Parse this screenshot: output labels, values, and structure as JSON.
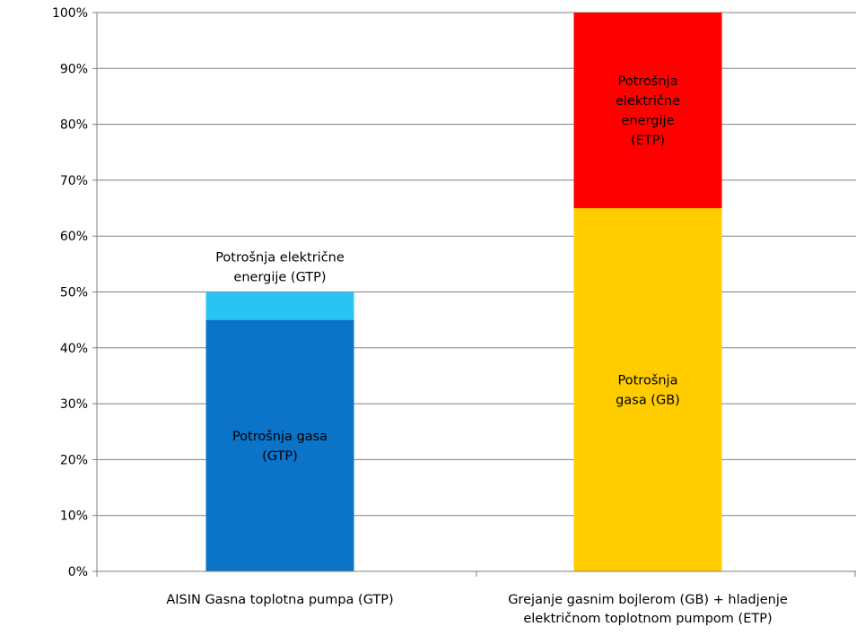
{
  "chart_data": {
    "type": "bar",
    "stacked": true,
    "ylim": [
      0,
      100
    ],
    "y_tick_labels": [
      "0%",
      "10%",
      "20%",
      "30%",
      "40%",
      "50%",
      "60%",
      "70%",
      "80%",
      "90%",
      "100%"
    ],
    "y_ticks": [
      0,
      10,
      20,
      30,
      40,
      50,
      60,
      70,
      80,
      90,
      100
    ],
    "grid": true,
    "categories": [
      [
        "AISIN Gasna toplotna pumpa (GTP)"
      ],
      [
        "Grejanje gasnim bojlerom (GB) + hladjenje",
        "električnom toplotnom pumpom (ETP)"
      ]
    ],
    "bars": [
      {
        "segments": [
          {
            "label": [
              "Potrošnja gasa",
              "(GTP)"
            ],
            "value": 45,
            "color": "#0b74c9",
            "label_position": "inside"
          },
          {
            "label": [
              "Potrošnja električne",
              "energije (GTP)"
            ],
            "value": 5,
            "color": "#29c4f2",
            "label_position": "above"
          }
        ]
      },
      {
        "segments": [
          {
            "label": [
              "Potrošnja",
              "gasa (GB)"
            ],
            "value": 65,
            "color": "#ffcc00",
            "label_position": "inside"
          },
          {
            "label": [
              "Potrošnja",
              "električne",
              "energije",
              "(ETP)"
            ],
            "value": 35,
            "color": "#ff0000",
            "label_position": "inside"
          }
        ]
      }
    ]
  }
}
